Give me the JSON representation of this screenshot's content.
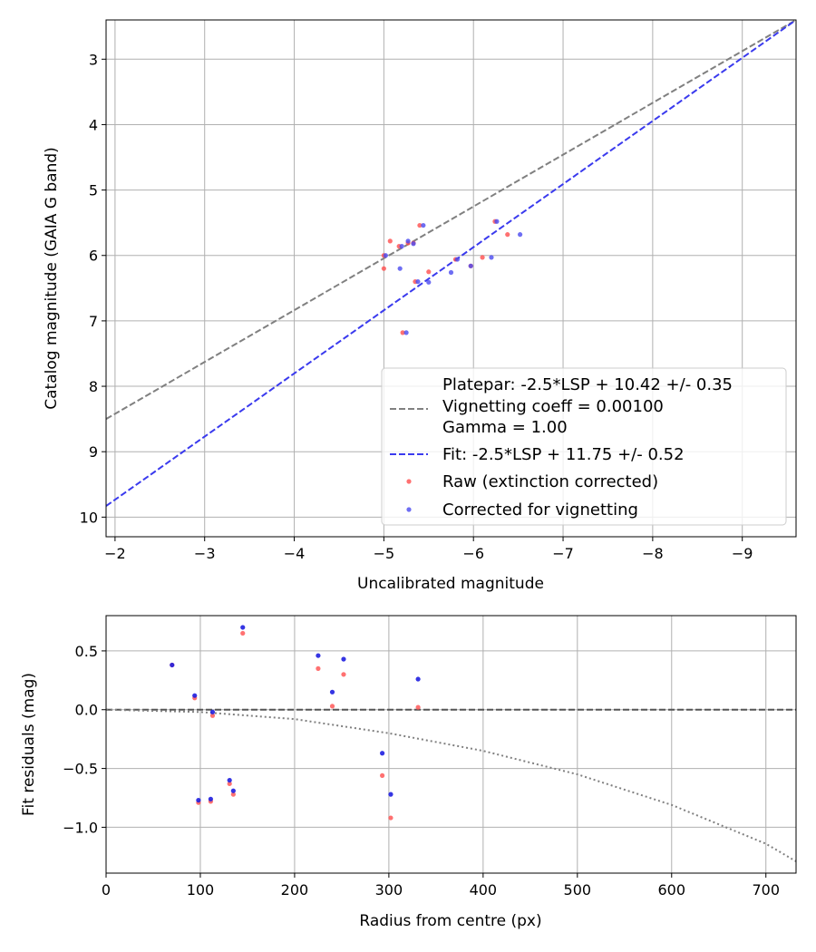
{
  "chart_data": [
    {
      "type": "scatter",
      "xlabel": "Uncalibrated magnitude",
      "ylabel": "Catalog magnitude (GAIA G band)",
      "xlim": [
        -1.9,
        -9.6
      ],
      "ylim": [
        10.3,
        2.4
      ],
      "x_inverted": true,
      "y_inverted": true,
      "grid": true,
      "xticks": [
        -2,
        -3,
        -4,
        -5,
        -6,
        -7,
        -8,
        -9
      ],
      "xtick_labels": [
        "−2",
        "−3",
        "−4",
        "−5",
        "−6",
        "−7",
        "−8",
        "−9"
      ],
      "yticks": [
        3,
        4,
        5,
        6,
        7,
        8,
        9,
        10
      ],
      "ytick_labels": [
        "3",
        "4",
        "5",
        "6",
        "7",
        "8",
        "9",
        "10"
      ],
      "lines": [
        {
          "name": "Platepar",
          "color": "#808080",
          "style": "dashed",
          "x_start": -1.9,
          "y_start": 8.5,
          "x_end": -9.6,
          "y_end": 2.4
        },
        {
          "name": "Fit",
          "color": "#3a3aee",
          "style": "dashed",
          "x_start": -1.9,
          "y_start": 9.83,
          "x_end": -9.6,
          "y_end": 2.4
        }
      ],
      "series": [
        {
          "name": "Raw (extinction corrected)",
          "color": "#ff4d4d",
          "points": [
            [
              -5.0,
              6.0
            ],
            [
              -5.0,
              6.2
            ],
            [
              -5.07,
              5.78
            ],
            [
              -5.17,
              5.86
            ],
            [
              -5.21,
              7.18
            ],
            [
              -5.27,
              5.81
            ],
            [
              -5.33,
              5.81
            ],
            [
              -5.35,
              6.4
            ],
            [
              -5.4,
              5.54
            ],
            [
              -5.5,
              6.25
            ],
            [
              -5.8,
              6.06
            ],
            [
              -5.97,
              6.16
            ],
            [
              -6.1,
              6.03
            ],
            [
              -6.24,
              5.48
            ],
            [
              -6.38,
              5.68
            ]
          ]
        },
        {
          "name": "Corrected for vignetting",
          "color": "#4a4af0",
          "points": [
            [
              -5.02,
              6.0
            ],
            [
              -5.18,
              6.2
            ],
            [
              -5.2,
              5.86
            ],
            [
              -5.25,
              7.18
            ],
            [
              -5.27,
              5.78
            ],
            [
              -5.33,
              5.82
            ],
            [
              -5.38,
              6.4
            ],
            [
              -5.44,
              5.54
            ],
            [
              -5.5,
              6.41
            ],
            [
              -5.75,
              6.26
            ],
            [
              -5.82,
              6.06
            ],
            [
              -5.97,
              6.16
            ],
            [
              -6.2,
              6.03
            ],
            [
              -6.26,
              5.48
            ],
            [
              -6.52,
              5.68
            ]
          ]
        }
      ],
      "legend": {
        "placement": "lower-right",
        "entries": [
          {
            "kind": "text",
            "label": "Platepar: -2.5*LSP + 10.42 +/- 0.35"
          },
          {
            "kind": "line",
            "color": "#808080",
            "label": "Vignetting coeff = 0.00100"
          },
          {
            "kind": "text",
            "label": "Gamma = 1.00"
          },
          {
            "kind": "line",
            "color": "#3a3aee",
            "label": "Fit: -2.5*LSP + 11.75 +/- 0.52"
          },
          {
            "kind": "marker",
            "color": "#ff4d4d",
            "label": "Raw (extinction corrected)"
          },
          {
            "kind": "marker",
            "color": "#4a4af0",
            "label": "Corrected for vignetting"
          }
        ]
      }
    },
    {
      "type": "scatter",
      "xlabel": "Radius from centre (px)",
      "ylabel": "Fit residuals (mag)",
      "xlim": [
        0,
        732
      ],
      "ylim": [
        -1.39,
        0.8
      ],
      "grid": true,
      "xticks": [
        0,
        100,
        200,
        300,
        400,
        500,
        600,
        700
      ],
      "xtick_labels": [
        "0",
        "100",
        "200",
        "300",
        "400",
        "500",
        "600",
        "700"
      ],
      "yticks": [
        0.5,
        0.0,
        -0.5,
        -1.0
      ],
      "ytick_labels": [
        "0.5",
        "0.0",
        "−0.5",
        "−1.0"
      ],
      "zero_line": {
        "y": 0.0,
        "color": "#555555",
        "style": "dashed"
      },
      "vignetting_curve": {
        "color": "#808080",
        "style": "dotted",
        "x": [
          0,
          100,
          200,
          300,
          400,
          500,
          600,
          700,
          732
        ],
        "y": [
          0.0,
          -0.02,
          -0.08,
          -0.2,
          -0.35,
          -0.55,
          -0.81,
          -1.14,
          -1.29
        ]
      },
      "series": [
        {
          "name": "Raw (extinction corrected)",
          "color": "#ff4d4d",
          "points": [
            [
              70,
              0.38
            ],
            [
              94,
              0.1
            ],
            [
              98,
              -0.79
            ],
            [
              111,
              -0.78
            ],
            [
              113,
              -0.05
            ],
            [
              131,
              -0.63
            ],
            [
              135,
              -0.72
            ],
            [
              145,
              0.65
            ],
            [
              225,
              0.35
            ],
            [
              240,
              0.03
            ],
            [
              252,
              0.3
            ],
            [
              293,
              -0.56
            ],
            [
              302,
              -0.92
            ],
            [
              331,
              0.02
            ]
          ]
        },
        {
          "name": "Corrected for vignetting",
          "color": "#1f1fe0",
          "points": [
            [
              70,
              0.38
            ],
            [
              94,
              0.12
            ],
            [
              98,
              -0.77
            ],
            [
              111,
              -0.76
            ],
            [
              113,
              -0.02
            ],
            [
              131,
              -0.6
            ],
            [
              135,
              -0.69
            ],
            [
              145,
              0.7
            ],
            [
              225,
              0.46
            ],
            [
              240,
              0.15
            ],
            [
              252,
              0.43
            ],
            [
              293,
              -0.37
            ],
            [
              302,
              -0.72
            ],
            [
              331,
              0.26
            ]
          ]
        }
      ]
    }
  ]
}
